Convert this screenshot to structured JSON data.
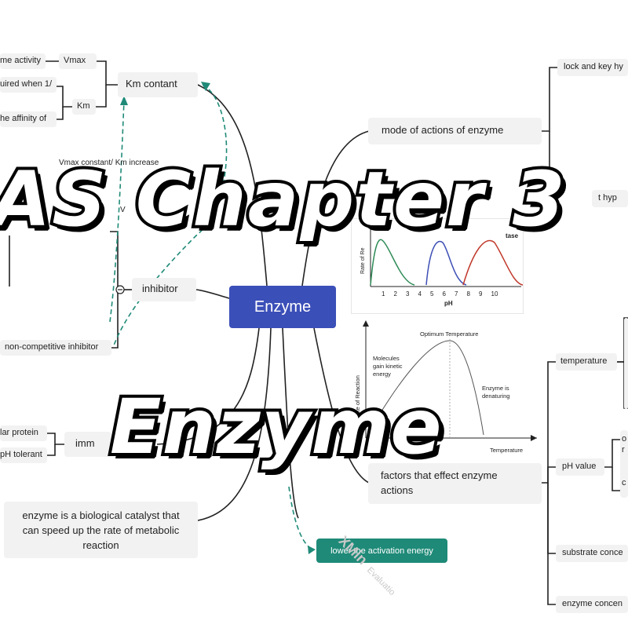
{
  "overlay": {
    "title_line1": "AS Chapter 3",
    "title_line2": "Enzyme"
  },
  "mindmap": {
    "root": "Enzyme",
    "km_branch": {
      "label": "Km contant",
      "vmax": "Vmax",
      "vmax_desc": "me activity",
      "km": "Km",
      "km_desc1": "uired when 1/",
      "km_desc2": "he affinity of"
    },
    "inhibitor_branch": {
      "label": "inhibitor",
      "note_top": "Vmax constant/ Km increase",
      "note_partial": "V",
      "noncompetitive": "non-competitive inhibitor"
    },
    "immobilized_branch": {
      "label": "imm",
      "child1": "lar protein",
      "child2": "pH tolerant"
    },
    "definition": "enzyme is a biological catalyst that can speed up the rate of metabolic reaction",
    "activation": "lower the activation energy",
    "mode_branch": {
      "label": "mode of actions of enzyme",
      "child1": "lock and key hy",
      "child2": "t hyp"
    },
    "factors_branch": {
      "label": "factors that effect enzyme actions",
      "temperature": "temperature",
      "ph_value": "pH value",
      "ph_sub1": "o",
      "ph_sub2": "r",
      "ph_sub3": "c",
      "substrate": "substrate conce",
      "enzyme_conc": "enzyme concen"
    }
  },
  "ph_figure": {
    "partial_title": "tase",
    "ylabel": "Rate of Re",
    "xlabel": "pH",
    "ticks": [
      "1",
      "2",
      "3",
      "4",
      "5",
      "6",
      "7",
      "8",
      "9",
      "10"
    ],
    "curve_colors": [
      "#2e8b57",
      "#3d4fb5",
      "#c0392b"
    ]
  },
  "temp_figure": {
    "peak_label": "Optimum Temperature",
    "rise_label_1": "Molecules",
    "rise_label_2": "gain kinetic",
    "rise_label_3": "energy",
    "fall_label_1": "Enzyme is",
    "fall_label_2": "denaturing",
    "ylabel": "Rate of Reaction",
    "xlabel": "Temperature"
  },
  "watermark": "XMin",
  "watermark_sub": "Evaluatio"
}
